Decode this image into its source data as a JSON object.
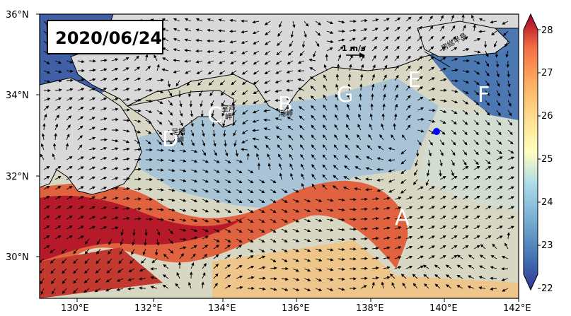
{
  "map": {
    "date": "2020/06/24",
    "scale_label": "1 m/s",
    "colorbar_ticks": [
      "22",
      "23",
      "24",
      "25",
      "26",
      "27",
      "28"
    ],
    "lon_ticks": [
      "130°E",
      "132°E",
      "134°E",
      "136°E",
      "138°E",
      "140°E",
      "142°E"
    ],
    "lat_ticks": [
      "36°N",
      "34°N",
      "32°N",
      "30°N"
    ],
    "markers": {
      "A": "A",
      "B": "B",
      "C": "C",
      "D": "D",
      "E": "E",
      "F": "F",
      "G": "G"
    },
    "place_labels": {
      "muroto": "室戸\n岬",
      "shionomisaki": "潮岬",
      "ashizuri": "足摺\n岬",
      "boso": "房総半島"
    },
    "colors": {
      "land": "#d9d9d9",
      "warm": "#a50026",
      "cool": "#313695",
      "point": "#0000ff"
    }
  }
}
